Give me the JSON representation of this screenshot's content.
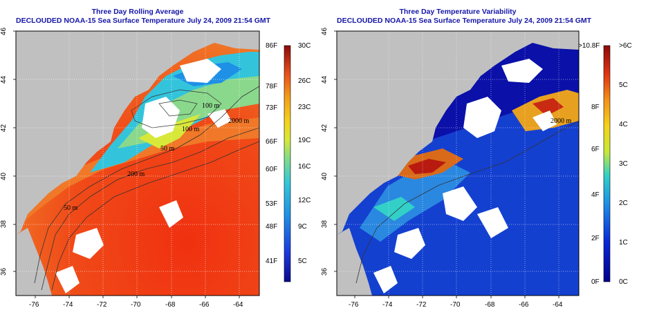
{
  "left_panel": {
    "title_line1": "Three Day Rolling Average",
    "title_line2": "DECLOUDED NOAA-15 Sea Surface Temperature July 24, 2009 21:54 GMT",
    "y_ticks": [
      "46",
      "44",
      "42",
      "40",
      "38",
      "36"
    ],
    "x_ticks": [
      "-76",
      "-74",
      "-72",
      "-70",
      "-68",
      "-66",
      "-64"
    ],
    "contour_labels": [
      "100 m",
      "2000 m",
      "200 m",
      "50 m",
      "100 m",
      "50 m"
    ],
    "colorbar_f": [
      "86F",
      "78F",
      "73F",
      "66F",
      "60F",
      "53F",
      "48F",
      "41F"
    ],
    "colorbar_c": [
      "30C",
      "26C",
      "23C",
      "19C",
      "16C",
      "12C",
      "9C",
      "5C"
    ]
  },
  "right_panel": {
    "title_line1": "Three Day Temperature Variability",
    "title_line2": "DECLOUDED NOAA-15 Sea Surface Temperature July 24, 2009 21:54 GMT",
    "y_ticks": [
      "46",
      "44",
      "42",
      "40",
      "38",
      "36"
    ],
    "x_ticks": [
      "-76",
      "-74",
      "-72",
      "-70",
      "-68",
      "-66",
      "-64"
    ],
    "contour_labels": [
      "2000 m"
    ],
    "colorbar_f": ">10.8F",
    "colorbar_f_ticks": [
      "8F",
      "6F",
      "4F",
      "2F",
      "0F"
    ],
    "colorbar_c": [
      ">6C",
      "5C",
      "4C",
      "3C",
      "2C",
      "1C",
      "0C"
    ]
  },
  "colors": {
    "title": "#1515a8",
    "land": "#c0c0c0",
    "ocean_warm": "#e83a1a",
    "ocean_cool": "#33c4dc",
    "variability_low": "#0a10a8"
  }
}
